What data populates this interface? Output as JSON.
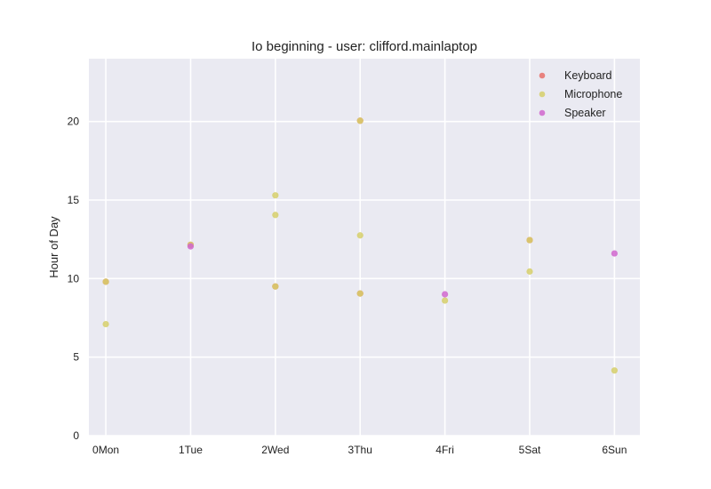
{
  "chart_data": {
    "type": "scatter",
    "title": "Io beginning - user: clifford.mainlaptop",
    "xlabel": "",
    "ylabel": "Hour of Day",
    "categories": [
      "0Mon",
      "1Tue",
      "2Wed",
      "3Thu",
      "4Fri",
      "5Sat",
      "6Sun"
    ],
    "xlim": [
      -0.2,
      6.3
    ],
    "ylim": [
      0,
      24
    ],
    "yticks": [
      0,
      5,
      10,
      15,
      20
    ],
    "grid": true,
    "legend_position": "top-right",
    "colors": {
      "plot_bg": "#EAEAF2",
      "grid": "#FFFFFF"
    },
    "series": [
      {
        "name": "Keyboard",
        "color": "#E8706B",
        "points": [
          {
            "x": 0,
            "y": 9.8
          },
          {
            "x": 1,
            "y": 12.15
          },
          {
            "x": 2,
            "y": 9.5
          },
          {
            "x": 3,
            "y": 9.05
          },
          {
            "x": 3,
            "y": 20.05
          },
          {
            "x": 5,
            "y": 12.45
          }
        ]
      },
      {
        "name": "Microphone",
        "color": "#D6CF6A",
        "points": [
          {
            "x": 0,
            "y": 9.8
          },
          {
            "x": 0,
            "y": 7.1
          },
          {
            "x": 1,
            "y": 12.15
          },
          {
            "x": 2,
            "y": 15.3
          },
          {
            "x": 2,
            "y": 14.05
          },
          {
            "x": 2,
            "y": 9.5
          },
          {
            "x": 3,
            "y": 20.05
          },
          {
            "x": 3,
            "y": 12.75
          },
          {
            "x": 3,
            "y": 9.05
          },
          {
            "x": 4,
            "y": 8.6
          },
          {
            "x": 5,
            "y": 12.45
          },
          {
            "x": 5,
            "y": 10.45
          },
          {
            "x": 6,
            "y": 4.15
          }
        ]
      },
      {
        "name": "Speaker",
        "color": "#D066CE",
        "points": [
          {
            "x": 1,
            "y": 12.05
          },
          {
            "x": 4,
            "y": 9.0
          },
          {
            "x": 6,
            "y": 11.6
          }
        ]
      }
    ]
  }
}
